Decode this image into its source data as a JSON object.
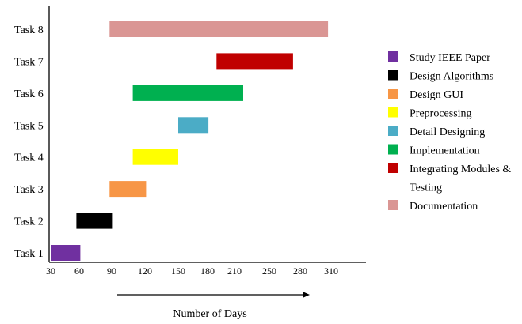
{
  "chart_data": {
    "type": "gantt",
    "title": "",
    "xlabel": "Number of Days",
    "ylabel": "",
    "x_ticks": [
      "30",
      "60",
      "90",
      "120",
      "150",
      "180",
      "210",
      "250",
      "280",
      "310"
    ],
    "grid": false,
    "legend_position": "right",
    "tasks": [
      {
        "label": "Task 1",
        "name": "Study IEEE Paper",
        "start": 30,
        "end": 61,
        "color": "#7030a0"
      },
      {
        "label": "Task 2",
        "name": "Design Algorithms",
        "start": 57,
        "end": 91,
        "color": "#000000"
      },
      {
        "label": "Task 3",
        "name": "Design GUI",
        "start": 88,
        "end": 121,
        "color": "#f79646"
      },
      {
        "label": "Task 4",
        "name": "Preprocessing",
        "start": 109,
        "end": 150,
        "color": "#ffff00"
      },
      {
        "label": "Task 5",
        "name": "Detail Designing",
        "start": 150,
        "end": 181,
        "color": "#4bacc6"
      },
      {
        "label": "Task 6",
        "name": "Implementation",
        "start": 109,
        "end": 220,
        "color": "#00b050"
      },
      {
        "label": "Task 7",
        "name": "Integrating Modules & Testing",
        "start": 190,
        "end": 273,
        "color": "#c00000"
      },
      {
        "label": "Task 8",
        "name": "Documentation",
        "start": 88,
        "end": 307,
        "color": "#da9694"
      }
    ],
    "legend": [
      {
        "lines": [
          "Study IEEE Paper"
        ],
        "color": "#7030a0"
      },
      {
        "lines": [
          "Design Algorithms"
        ],
        "color": "#000000"
      },
      {
        "lines": [
          "Design GUI"
        ],
        "color": "#f79646"
      },
      {
        "lines": [
          "Preprocessing"
        ],
        "color": "#ffff00"
      },
      {
        "lines": [
          "Detail Designing"
        ],
        "color": "#4bacc6"
      },
      {
        "lines": [
          "Implementation"
        ],
        "color": "#00b050"
      },
      {
        "lines": [
          "Integrating Modules &",
          "Testing"
        ],
        "color": "#c00000"
      },
      {
        "lines": [
          "Documentation"
        ],
        "color": "#da9694"
      }
    ]
  }
}
